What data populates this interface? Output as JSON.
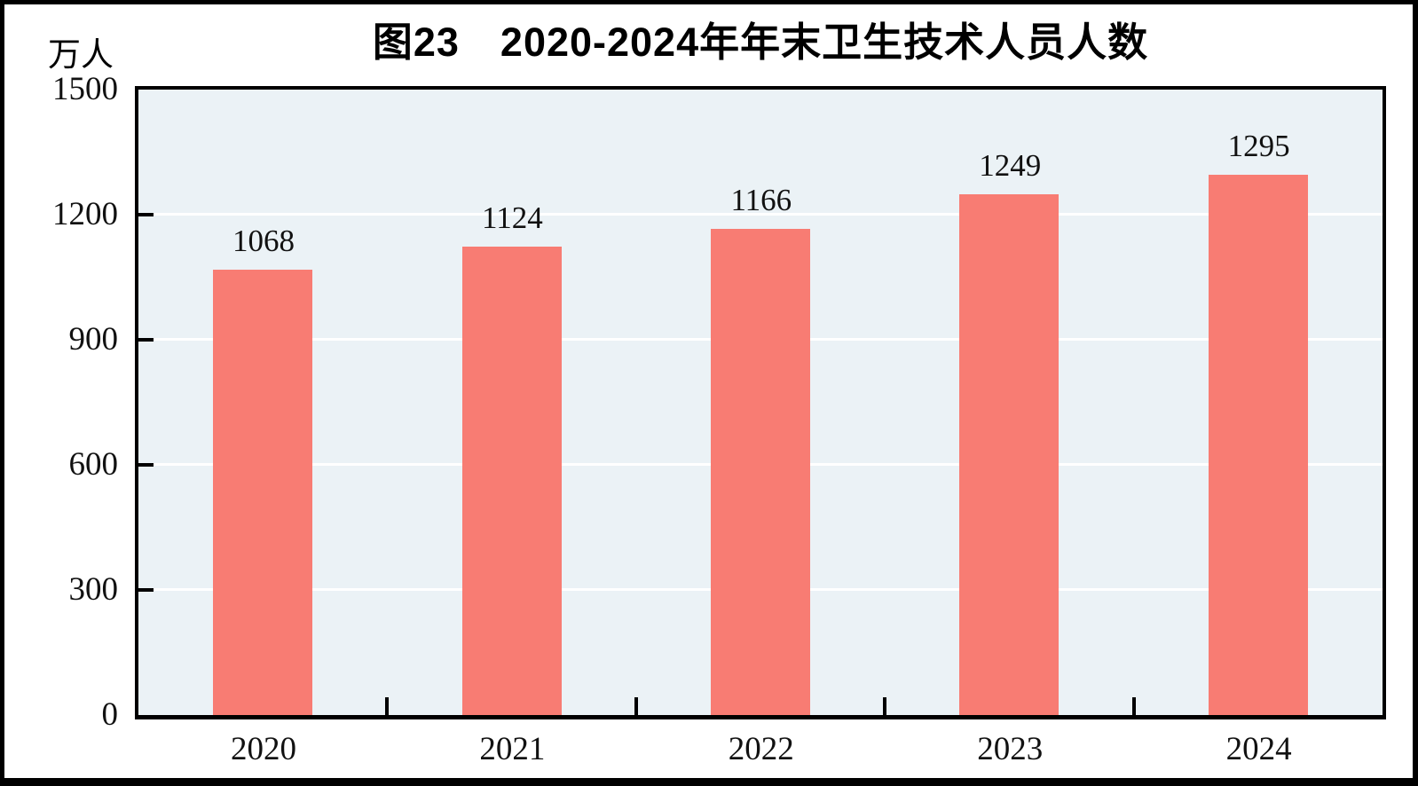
{
  "figure": {
    "title": "图23　2020-2024年年末卫生技术人员人数",
    "unit_label": "万人"
  },
  "chart_data": {
    "type": "bar",
    "title": "图23　2020-2024年年末卫生技术人员人数",
    "ylabel": "万人",
    "xlabel": "",
    "categories": [
      "2020",
      "2021",
      "2022",
      "2023",
      "2024"
    ],
    "values": [
      1068,
      1124,
      1166,
      1249,
      1295
    ],
    "ylim": [
      0,
      1500
    ],
    "yticks": [
      0,
      300,
      600,
      900,
      1200,
      1500
    ],
    "grid": true,
    "value_labels_shown": true,
    "legend": "none",
    "colors": {
      "bar_fill": "#F87C73",
      "plot_background": "#EBF2F6",
      "gridline": "#FFFFFF",
      "axis": "#000000",
      "text": "#111111"
    }
  }
}
